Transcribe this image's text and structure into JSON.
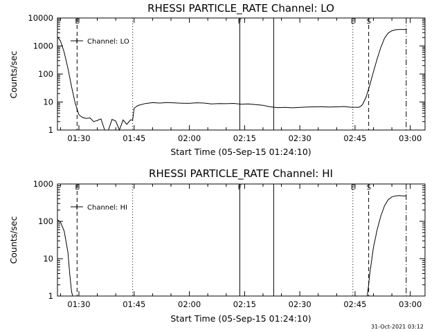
{
  "chart_data": [
    {
      "type": "line",
      "title": "RHESSI PARTICLE_RATE Channel: LO",
      "xlabel": "Start Time (05-Sep-15 01:24:10)",
      "ylabel": "Counts/sec",
      "yscale": "log",
      "xlim_min": [
        84.17,
        184
      ],
      "ylim": [
        1,
        10000
      ],
      "x_ticks": [
        "01:30",
        "01:45",
        "02:00",
        "02:15",
        "02:30",
        "02:45",
        "03:00"
      ],
      "x_tick_minutes": [
        90,
        105,
        120,
        135,
        150,
        165,
        180
      ],
      "y_ticks": [
        "1",
        "10",
        "100",
        "1000",
        "10000"
      ],
      "y_tick_values": [
        1,
        10,
        100,
        1000,
        10000
      ],
      "legend": "Channel: LO",
      "series": [
        {
          "name": "Channel: LO",
          "x_min": [
            84.2,
            85,
            86,
            87,
            88,
            89,
            90,
            91,
            92,
            93,
            94,
            95,
            96,
            97,
            98,
            99,
            100,
            101,
            102,
            103,
            104,
            104.6,
            105,
            106,
            108,
            110,
            112,
            114,
            116,
            118,
            120,
            122,
            124,
            126,
            128,
            130,
            132,
            134,
            136,
            138,
            140,
            142,
            144,
            146,
            148,
            150,
            152,
            154,
            156,
            158,
            160,
            162,
            164,
            166,
            166.5,
            167,
            168,
            169,
            170,
            171,
            172,
            173,
            174,
            175,
            176,
            177,
            178,
            179
          ],
          "counts_per_sec": [
            2100,
            1500,
            600,
            160,
            35,
            9,
            3.5,
            2.8,
            2.6,
            2.7,
            2,
            2.2,
            2.5,
            1,
            1,
            2.4,
            2.1,
            1,
            2.3,
            1.6,
            2.3,
            2.3,
            6,
            7.5,
            8.8,
            9.5,
            9.2,
            9.6,
            9.3,
            9.1,
            9,
            9.4,
            9.2,
            8.6,
            8.8,
            8.7,
            8.9,
            8.4,
            8.6,
            8.1,
            7.6,
            6.7,
            6.3,
            6.4,
            6.2,
            6.4,
            6.6,
            6.7,
            6.8,
            6.6,
            6.7,
            6.9,
            6.5,
            6.5,
            7,
            8,
            15,
            40,
            120,
            350,
            900,
            1900,
            2900,
            3500,
            3800,
            3900,
            3900,
            3900
          ]
        }
      ],
      "vlines": [
        {
          "x_min": 89.5,
          "style": "dashed",
          "label": "E"
        },
        {
          "x_min": 104.6,
          "style": "dotted",
          "label": ""
        },
        {
          "x_min": 133.7,
          "style": "solid",
          "label": "F"
        },
        {
          "x_min": 142.9,
          "style": "solid",
          "label": ""
        },
        {
          "x_min": 164.4,
          "style": "dotted",
          "label": "E"
        },
        {
          "x_min": 168.7,
          "style": "dashed",
          "label": "S"
        },
        {
          "x_min": 178.9,
          "style": "dashdot",
          "label": ""
        }
      ]
    },
    {
      "type": "line",
      "title": "RHESSI PARTICLE_RATE Channel: HI",
      "xlabel": "Start Time (05-Sep-15 01:24:10)",
      "ylabel": "Counts/sec",
      "yscale": "log",
      "xlim_min": [
        84.17,
        184
      ],
      "ylim": [
        1,
        1000
      ],
      "x_ticks": [
        "01:30",
        "01:45",
        "02:00",
        "02:15",
        "02:30",
        "02:45",
        "03:00"
      ],
      "x_tick_minutes": [
        90,
        105,
        120,
        135,
        150,
        165,
        180
      ],
      "y_ticks": [
        "1",
        "10",
        "100",
        "1000"
      ],
      "y_tick_values": [
        1,
        10,
        100,
        1000
      ],
      "legend": "Channel: HI",
      "series": [
        {
          "name": "Channel: HI",
          "x_min": [
            84.2,
            85,
            86,
            87,
            87.5,
            88,
            88.3
          ],
          "counts_per_sec": [
            110,
            95,
            55,
            15,
            4,
            1.3,
            1
          ],
          "x2_min": [
            168.3,
            168.7,
            169,
            169.5,
            170,
            171,
            172,
            173,
            174,
            175,
            176,
            177,
            178,
            178.9
          ],
          "counts_per_sec_2": [
            1,
            2,
            4,
            9,
            20,
            60,
            140,
            260,
            380,
            450,
            480,
            490,
            480,
            480
          ]
        }
      ],
      "vlines": [
        {
          "x_min": 89.5,
          "style": "dashed",
          "label": "E"
        },
        {
          "x_min": 104.6,
          "style": "dotted",
          "label": ""
        },
        {
          "x_min": 133.7,
          "style": "solid",
          "label": "F"
        },
        {
          "x_min": 142.9,
          "style": "solid",
          "label": ""
        },
        {
          "x_min": 164.4,
          "style": "dotted",
          "label": "E"
        },
        {
          "x_min": 168.7,
          "style": "dashed",
          "label": "S"
        },
        {
          "x_min": 178.9,
          "style": "dashdot",
          "label": ""
        }
      ]
    }
  ],
  "footer": {
    "timestamp": "31-Oct-2021 03:12"
  }
}
